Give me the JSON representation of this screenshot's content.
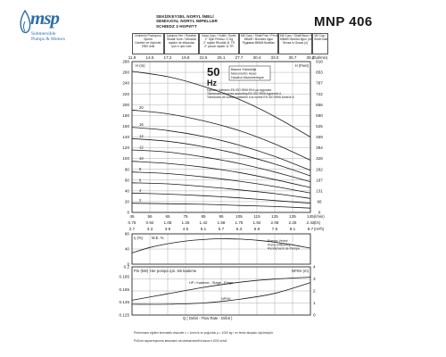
{
  "brand": {
    "logo": "msp",
    "tagline_1": "Submersible",
    "tagline_2": "Pumps & Motors"
  },
  "titles": [
    "SEKİZKEYSEL NORYL İMELİ",
    "SEMİAXİAL NORYL IMPELLER",
    "SCHIEDZ 3 НОРИ?Т"
  ],
  "model": "MNP 406",
  "header_cells": [
    [
      "Ürünlerin Pozisyonu",
      "Speed",
      "Ücretler ve ölçümler",
      "2900 d/dk"
    ],
    [
      "Çalışma Yeri / Rotation",
      "Seaalt Yone / Velocida",
      "rapidor de ellipsolac",
      "rpm e rpm rolle"
    ],
    [
      "Kasa Çapı / Outlet / Sortie",
      "2\" Spin Pressu: G Gg",
      "2\" rapide Rhodial 41 TR",
      "2\" рычаг rapide 11 TR"
    ],
    [
      "Mil Gucu / Shaft Pow / Pm d'Arbre",
      "MBAR / Bombes Ilgun",
      "Рудивая МВАМ Вомбал"
    ],
    [
      "Mil Gucu / Shaft Blow / Pm",
      "MBAR/ Bomba Ilgun (mm)",
      "Sensa in Gusas (л)"
    ],
    [
      "Mil Cap /",
      "Shaft Diameter"
    ]
  ],
  "chart_data": [
    {
      "type": "line",
      "title": "",
      "xlabel": "",
      "ylabel": "H (m)",
      "ylabel_right": "H (Feet)",
      "x_top_unit": "(Gal/min)",
      "x_top_ticks": [
        11.9,
        14.5,
        17.2,
        19.8,
        22.5,
        25.1,
        27.7,
        30.4,
        33.0,
        35.7,
        38.3
      ],
      "x_unit_1": "l/min",
      "x_ticks_1": [
        45,
        55,
        65,
        75,
        85,
        95,
        105,
        115,
        125,
        135,
        145
      ],
      "x_unit_2": "l/s",
      "x_ticks_2": [
        0.75,
        0.92,
        1.08,
        1.25,
        1.42,
        1.58,
        1.75,
        1.92,
        2.08,
        2.25,
        2.42
      ],
      "x_unit_3": "m³/h",
      "x_ticks_3": [
        2.7,
        3.3,
        3.9,
        4.5,
        5.1,
        5.7,
        6.3,
        6.9,
        7.5,
        8.1,
        8.7
      ],
      "ylim": [
        0,
        280
      ],
      "y_ticks": [
        0,
        20,
        40,
        60,
        80,
        100,
        120,
        140,
        160,
        180,
        200,
        220,
        240,
        260,
        280
      ],
      "y_ticks_right": [
        0,
        66,
        131,
        197,
        262,
        328,
        394,
        459,
        525,
        590,
        656,
        722,
        787,
        853,
        918
      ],
      "frequency": "50 Hz",
      "frequency_value": "50",
      "frequency_unit": "Hz",
      "legend_lines": [
        "Basma Yüksekliği",
        "Manometric Head",
        "Hauteur Manometrique"
      ],
      "note_lines": [
        "Eğrilerin toleransı EN ISO 9906:99 A ya uygundur",
        "Tolerances of curves according EN ISO 9906 Appendix A",
        "Tolerances de curbes conforme a la norme EN ISO 9906 Annexe A"
      ],
      "series": [
        {
          "name": "20",
          "x": [
            45,
            65,
            85,
            105,
            125,
            145
          ],
          "values": [
            190,
            183,
            170,
            152,
            127,
            97
          ]
        },
        {
          "name": "16",
          "x": [
            45,
            65,
            85,
            105,
            125,
            145
          ],
          "values": [
            158,
            152,
            141,
            125,
            104,
            78
          ]
        },
        {
          "name": "14",
          "x": [
            45,
            65,
            85,
            105,
            125,
            145
          ],
          "values": [
            137,
            132,
            122,
            108,
            90,
            68
          ]
        },
        {
          "name": "12",
          "x": [
            45,
            65,
            85,
            105,
            125,
            145
          ],
          "values": [
            116,
            112,
            103,
            91,
            75,
            57
          ]
        },
        {
          "name": "10",
          "x": [
            45,
            65,
            85,
            105,
            125,
            145
          ],
          "values": [
            95,
            91,
            84,
            74,
            61,
            46
          ]
        },
        {
          "name": "8",
          "x": [
            45,
            65,
            85,
            105,
            125,
            145
          ],
          "values": [
            75,
            72,
            66,
            58,
            48,
            36
          ]
        },
        {
          "name": "6",
          "x": [
            45,
            65,
            85,
            105,
            125,
            145
          ],
          "values": [
            55,
            53,
            48,
            42,
            35,
            26
          ]
        },
        {
          "name": "4",
          "x": [
            45,
            65,
            85,
            105,
            125,
            145
          ],
          "values": [
            36,
            34,
            31,
            27,
            22,
            17
          ]
        },
        {
          "name": "2",
          "x": [
            45,
            65,
            85,
            105,
            125,
            145
          ],
          "values": [
            17,
            16,
            15,
            13,
            11,
            8
          ]
        }
      ],
      "top_curve": {
        "x": [
          45,
          65,
          85,
          105,
          125,
          145
        ],
        "values": [
          262,
          252,
          234,
          210,
          178,
          140
        ]
      },
      "grid": true
    },
    {
      "type": "line",
      "title": "",
      "ylabel": "η (%)",
      "series_label": "M.E. %",
      "ylim": [
        0,
        80
      ],
      "y_ticks": [
        0,
        40,
        80
      ],
      "legend_lines": [
        "Pompa Verimi",
        "Pump Efficiency",
        "Rendement de Pompe"
      ],
      "series": [
        {
          "name": "",
          "x": [
            45,
            55,
            65,
            75,
            85,
            95,
            105,
            115,
            125,
            135,
            145
          ],
          "values": [
            30,
            44,
            54,
            61,
            65,
            67,
            66,
            63,
            58,
            51,
            42
          ]
        }
      ]
    },
    {
      "type": "line",
      "title": "",
      "ylabel_left": "Pm (kW)",
      "ylabel_right": "NPSH (m)",
      "ylim_left": [
        0.125,
        0.2
      ],
      "y_ticks_left": [
        0.125,
        0.145,
        0.165,
        0.185,
        0.2
      ],
      "ylim_right": [
        0,
        4
      ],
      "y_ticks_right": [
        0,
        1,
        2,
        3,
        4
      ],
      "annotation": "Her pompa için. tek kademe",
      "xlabel": "Q  ( Debit - Flow Rate - Débit )",
      "series": [
        {
          "name": "HP / Kademe - Stage - Étage",
          "x": [
            45,
            65,
            85,
            105,
            125,
            145
          ],
          "values": [
            0.148,
            0.158,
            0.168,
            0.176,
            0.181,
            0.184
          ]
        },
        {
          "name": "NPSH",
          "x": [
            45,
            65,
            85,
            105,
            125,
            145
          ],
          "values": [
            0.9,
            0.9,
            1.0,
            1.3,
            1.8,
            2.7
          ]
        }
      ]
    }
  ],
  "footer": {
    "line_1": "Performans eğrileri kinematik viskozite ν = 1mm²/s ve yoğunluk ρ = 1000 kg / m³ temiz akışkan olçülmüştür.",
    "line_2": "Роботи характеристик виконано на кінематичній в'язкості 1000 кг/м3"
  },
  "colors": {
    "brand": "#2d6fa8",
    "ink": "#1a1a1a",
    "grid": "#9a9a9a"
  }
}
